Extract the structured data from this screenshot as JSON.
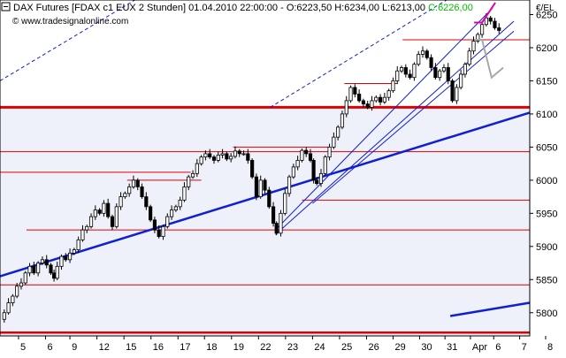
{
  "chart_data": {
    "type": "candlestick",
    "header": {
      "symbol": "DAX Futures",
      "details": "[FDAX c1 EUX  2 Stunden] 01.04.2010 22:00:00 - ",
      "ohlc": "O:6223,50 H:6234,00 L:6213,00",
      "last": "C:6226,00",
      "last_color": "#00c000"
    },
    "watermark": "© www.tradesignalonline.com",
    "currency_label": "€/EL",
    "y_range": [
      5765,
      6272
    ],
    "y_ticks": [
      5800,
      5850,
      5900,
      5950,
      6000,
      6050,
      6100,
      6150,
      6200,
      6250
    ],
    "y_tick_labels": [
      "5800",
      "5850",
      "5900",
      "5950",
      "6000",
      "6050",
      "6100",
      "6150",
      "6200",
      "6250"
    ],
    "x_range": [
      0,
      100
    ],
    "x_ticks": [
      {
        "x": 3.5,
        "label": "5"
      },
      {
        "x": 8.6,
        "label": "6"
      },
      {
        "x": 13.2,
        "label": "9"
      },
      {
        "x": 18.3,
        "label": "12"
      },
      {
        "x": 23.4,
        "label": "15"
      },
      {
        "x": 28.5,
        "label": "16"
      },
      {
        "x": 33.6,
        "label": "17"
      },
      {
        "x": 38.6,
        "label": "18"
      },
      {
        "x": 43.7,
        "label": "19"
      },
      {
        "x": 48.8,
        "label": "22"
      },
      {
        "x": 53.9,
        "label": "23"
      },
      {
        "x": 59.0,
        "label": "24"
      },
      {
        "x": 64.1,
        "label": "25"
      },
      {
        "x": 69.2,
        "label": "26"
      },
      {
        "x": 74.2,
        "label": "29"
      },
      {
        "x": 79.2,
        "label": "30"
      },
      {
        "x": 84.0,
        "label": "31"
      },
      {
        "x": 88.8,
        "label": "Apr"
      },
      {
        "x": 93.2,
        "label": "6"
      },
      {
        "x": 98.1,
        "label": "7"
      },
      {
        "x": 103.0,
        "label": "8"
      }
    ],
    "price_series": [
      [
        0.0,
        5790
      ],
      [
        0.8,
        5800
      ],
      [
        1.6,
        5815
      ],
      [
        2.4,
        5825
      ],
      [
        3.2,
        5840
      ],
      [
        4.0,
        5845
      ],
      [
        4.8,
        5860
      ],
      [
        5.6,
        5870
      ],
      [
        6.4,
        5860
      ],
      [
        7.2,
        5875
      ],
      [
        8.0,
        5880
      ],
      [
        8.8,
        5872
      ],
      [
        9.6,
        5860
      ],
      [
        10.2,
        5852
      ],
      [
        10.8,
        5870
      ],
      [
        11.6,
        5885
      ],
      [
        12.4,
        5880
      ],
      [
        13.2,
        5890
      ],
      [
        14.0,
        5895
      ],
      [
        14.8,
        5910
      ],
      [
        15.6,
        5925
      ],
      [
        16.4,
        5930
      ],
      [
        17.2,
        5945
      ],
      [
        18.0,
        5955
      ],
      [
        18.8,
        5950
      ],
      [
        19.6,
        5965
      ],
      [
        20.4,
        5945
      ],
      [
        21.2,
        5930
      ],
      [
        22.0,
        5960
      ],
      [
        22.8,
        5975
      ],
      [
        23.6,
        5980
      ],
      [
        24.4,
        5990
      ],
      [
        25.2,
        6000
      ],
      [
        26.0,
        5990
      ],
      [
        26.8,
        5975
      ],
      [
        27.6,
        5960
      ],
      [
        28.4,
        5940
      ],
      [
        29.2,
        5925
      ],
      [
        30.0,
        5915
      ],
      [
        30.8,
        5930
      ],
      [
        31.6,
        5945
      ],
      [
        32.4,
        5955
      ],
      [
        33.2,
        5960
      ],
      [
        34.0,
        5970
      ],
      [
        34.8,
        5990
      ],
      [
        35.6,
        6005
      ],
      [
        36.4,
        6010
      ],
      [
        37.2,
        6025
      ],
      [
        38.0,
        6035
      ],
      [
        38.8,
        6040
      ],
      [
        39.6,
        6035
      ],
      [
        40.4,
        6030
      ],
      [
        41.2,
        6038
      ],
      [
        42.0,
        6040
      ],
      [
        42.8,
        6032
      ],
      [
        43.6,
        6036
      ],
      [
        44.4,
        6044
      ],
      [
        45.2,
        6040
      ],
      [
        46.0,
        6040
      ],
      [
        46.8,
        6030
      ],
      [
        47.6,
        6005
      ],
      [
        48.4,
        5975
      ],
      [
        49.2,
        6000
      ],
      [
        50.0,
        5985
      ],
      [
        50.8,
        5960
      ],
      [
        51.6,
        5935
      ],
      [
        52.2,
        5920
      ],
      [
        53.0,
        5950
      ],
      [
        53.8,
        5980
      ],
      [
        54.6,
        6005
      ],
      [
        55.4,
        6020
      ],
      [
        56.2,
        6030
      ],
      [
        57.0,
        6045
      ],
      [
        57.8,
        6040
      ],
      [
        58.6,
        6030
      ],
      [
        59.2,
        6000
      ],
      [
        59.8,
        5995
      ],
      [
        60.6,
        6010
      ],
      [
        61.4,
        6035
      ],
      [
        62.2,
        6050
      ],
      [
        63.0,
        6065
      ],
      [
        63.8,
        6080
      ],
      [
        64.6,
        6100
      ],
      [
        65.4,
        6120
      ],
      [
        66.2,
        6140
      ],
      [
        67.0,
        6130
      ],
      [
        67.8,
        6120
      ],
      [
        68.6,
        6115
      ],
      [
        69.4,
        6110
      ],
      [
        70.2,
        6120
      ],
      [
        71.0,
        6125
      ],
      [
        71.8,
        6118
      ],
      [
        72.6,
        6125
      ],
      [
        73.4,
        6135
      ],
      [
        74.2,
        6150
      ],
      [
        75.0,
        6165
      ],
      [
        75.8,
        6170
      ],
      [
        76.6,
        6160
      ],
      [
        77.4,
        6155
      ],
      [
        78.2,
        6175
      ],
      [
        79.0,
        6190
      ],
      [
        79.8,
        6195
      ],
      [
        80.6,
        6185
      ],
      [
        81.4,
        6170
      ],
      [
        82.2,
        6155
      ],
      [
        83.0,
        6165
      ],
      [
        83.8,
        6170
      ],
      [
        84.6,
        6150
      ],
      [
        85.4,
        6120
      ],
      [
        86.2,
        6140
      ],
      [
        87.0,
        6160
      ],
      [
        87.8,
        6175
      ],
      [
        88.6,
        6195
      ],
      [
        89.4,
        6210
      ],
      [
        90.2,
        6220
      ],
      [
        91.0,
        6235
      ],
      [
        91.8,
        6245
      ],
      [
        92.6,
        6240
      ],
      [
        93.4,
        6230
      ],
      [
        94.2,
        6226
      ]
    ],
    "red_horizontal_lines": [
      {
        "y": 5770,
        "x0": 0,
        "x1": 100,
        "width": 2.5
      },
      {
        "y": 5842,
        "x0": 0,
        "x1": 100,
        "width": 1
      },
      {
        "y": 5925,
        "x0": 5,
        "x1": 100,
        "width": 1
      },
      {
        "y": 5970,
        "x0": 57,
        "x1": 100,
        "width": 1
      },
      {
        "y": 6000,
        "x0": 24,
        "x1": 38,
        "width": 1
      },
      {
        "y": 6012,
        "x0": 0,
        "x1": 36,
        "width": 1
      },
      {
        "y": 6043,
        "x0": 0,
        "x1": 100,
        "width": 1
      },
      {
        "y": 6050,
        "x0": 44,
        "x1": 62,
        "width": 1
      },
      {
        "y": 6110,
        "x0": 0,
        "x1": 100,
        "width": 3
      },
      {
        "y": 6146,
        "x0": 65,
        "x1": 75,
        "width": 1
      },
      {
        "y": 6212,
        "x0": 76,
        "x1": 100,
        "width": 1
      }
    ],
    "blue_trend_lines": [
      {
        "x0": 0,
        "y0": 5855,
        "x1": 100,
        "y1": 6102,
        "width": 2.5,
        "style": "solid"
      },
      {
        "x0": 85,
        "y0": 5795,
        "x1": 100,
        "y1": 5815,
        "width": 2.5,
        "style": "solid"
      },
      {
        "x0": 0,
        "y0": 6150,
        "x1": 48,
        "y1": 6380,
        "width": 1,
        "style": "dashed"
      },
      {
        "x0": 51,
        "y0": 6110,
        "x1": 88,
        "y1": 6290,
        "width": 1,
        "style": "dashed"
      },
      {
        "x0": 52,
        "y0": 5918,
        "x1": 97,
        "y1": 6240,
        "width": 1,
        "style": "solid"
      },
      {
        "x0": 52,
        "y0": 5925,
        "x1": 93,
        "y1": 6260,
        "width": 1,
        "style": "solid"
      },
      {
        "x0": 59,
        "y0": 5965,
        "x1": 97,
        "y1": 6225,
        "width": 1,
        "style": "solid"
      }
    ],
    "channel_fill": {
      "color": "#eef0fa",
      "upper_y": 6110
    },
    "projection_up": {
      "color": "#e000b0",
      "points": [
        [
          89.5,
          6238
        ],
        [
          91.0,
          6238
        ],
        [
          93.5,
          6268
        ]
      ]
    },
    "projection_down": {
      "color": "#a8a8a8",
      "points": [
        [
          89.5,
          6212
        ],
        [
          91.0,
          6212
        ],
        [
          92.8,
          6155
        ],
        [
          95.0,
          6170
        ]
      ]
    }
  }
}
